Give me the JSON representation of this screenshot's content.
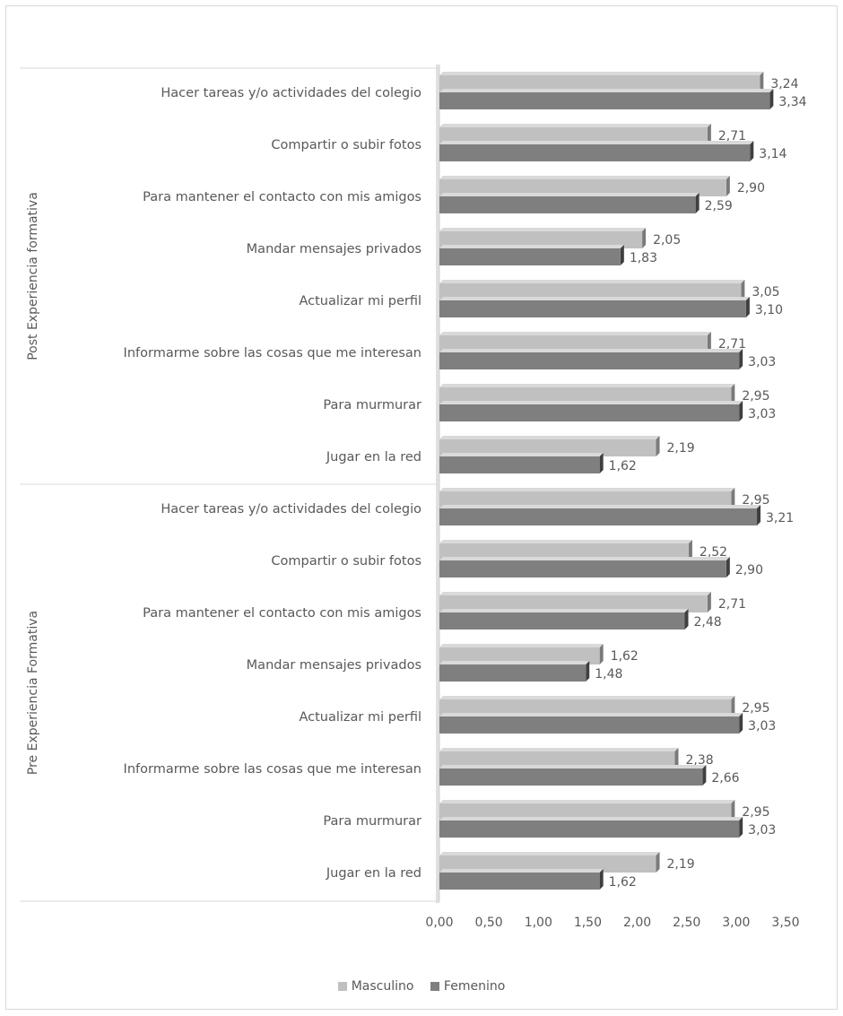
{
  "chart_data": {
    "type": "bar",
    "orientation": "horizontal",
    "value_axis": {
      "min": 0,
      "max": 3.5,
      "ticks": [
        "0,00",
        "0,50",
        "1,00",
        "1,50",
        "2,00",
        "2,50",
        "3,00",
        "3,50"
      ]
    },
    "groups": [
      {
        "label": "Post Experiencia formativa",
        "categories": [
          "Hacer tareas y/o actividades del colegio",
          "Compartir o subir fotos",
          "Para mantener el contacto con mis amigos",
          "Mandar mensajes privados",
          "Actualizar mi perfil",
          "Informarme sobre las cosas que me interesan",
          "Para murmurar",
          "Jugar en la red"
        ],
        "masculino": [
          3.24,
          2.71,
          2.9,
          2.05,
          3.05,
          2.71,
          2.95,
          2.19
        ],
        "femenino": [
          3.34,
          3.14,
          2.59,
          1.83,
          3.1,
          3.03,
          3.03,
          1.62
        ]
      },
      {
        "label": "Pre Experiencia Formativa",
        "categories": [
          "Hacer tareas y/o actividades del colegio",
          "Compartir o subir fotos",
          "Para mantener el contacto con mis amigos",
          "Mandar mensajes privados",
          "Actualizar mi perfil",
          "Informarme sobre las cosas que me interesan",
          "Para murmurar",
          "Jugar en la red"
        ],
        "masculino": [
          2.95,
          2.52,
          2.71,
          1.62,
          2.95,
          2.38,
          2.95,
          2.19
        ],
        "femenino": [
          3.21,
          2.9,
          2.48,
          1.48,
          3.03,
          2.66,
          3.03,
          1.62
        ]
      }
    ],
    "series": [
      {
        "name": "Masculino",
        "color": "#c0c0c0"
      },
      {
        "name": "Femenino",
        "color": "#7f7f7f"
      }
    ],
    "legend_position": "bottom",
    "grid": false
  }
}
